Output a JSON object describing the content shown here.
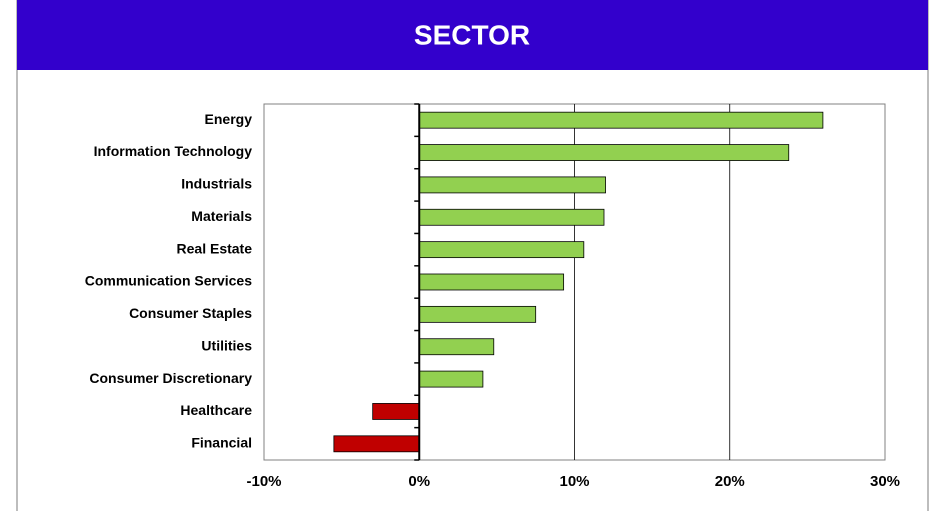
{
  "chart_data": {
    "type": "hbar",
    "title": "SECTOR",
    "categories": [
      "Energy",
      "Information Technology",
      "Industrials",
      "Materials",
      "Real Estate",
      "Communication Services",
      "Consumer Staples",
      "Utilities",
      "Consumer Discretionary",
      "Healthcare",
      "Financial"
    ],
    "values": [
      26.0,
      23.8,
      12.0,
      11.9,
      10.6,
      9.3,
      7.5,
      4.8,
      4.1,
      -3.0,
      -5.5
    ],
    "colors": [
      "#92d050",
      "#92d050",
      "#92d050",
      "#92d050",
      "#92d050",
      "#92d050",
      "#92d050",
      "#92d050",
      "#92d050",
      "#c00000",
      "#c00000"
    ],
    "xlim": [
      -10,
      30
    ],
    "xticks": [
      {
        "value": -10,
        "label": "-10%"
      },
      {
        "value": 0,
        "label": "0%"
      },
      {
        "value": 10,
        "label": "10%"
      },
      {
        "value": 20,
        "label": "20%"
      },
      {
        "value": 30,
        "label": "30%"
      }
    ],
    "grid": true
  }
}
